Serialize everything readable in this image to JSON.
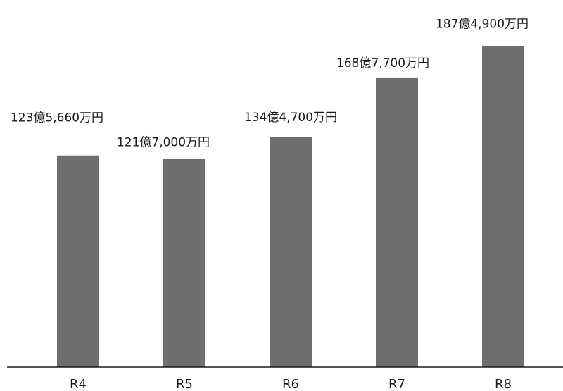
{
  "chart_data": {
    "type": "bar",
    "title": "",
    "xlabel": "",
    "ylabel": "",
    "categories": [
      "R4",
      "R5",
      "R6",
      "R7",
      "R8"
    ],
    "values": [
      123.566,
      121.7,
      134.47,
      168.77,
      187.49
    ],
    "data_labels": [
      "123億5,660万円",
      "121億7,000万円",
      "134億4,700万円",
      "168億7,700万円",
      "187億4,900万円"
    ],
    "unit": "億円",
    "ylim": [
      0,
      200
    ],
    "grid": false,
    "legend": "none",
    "bar_color": "#6e6e6e",
    "axis_color": "#1a1a1a"
  }
}
